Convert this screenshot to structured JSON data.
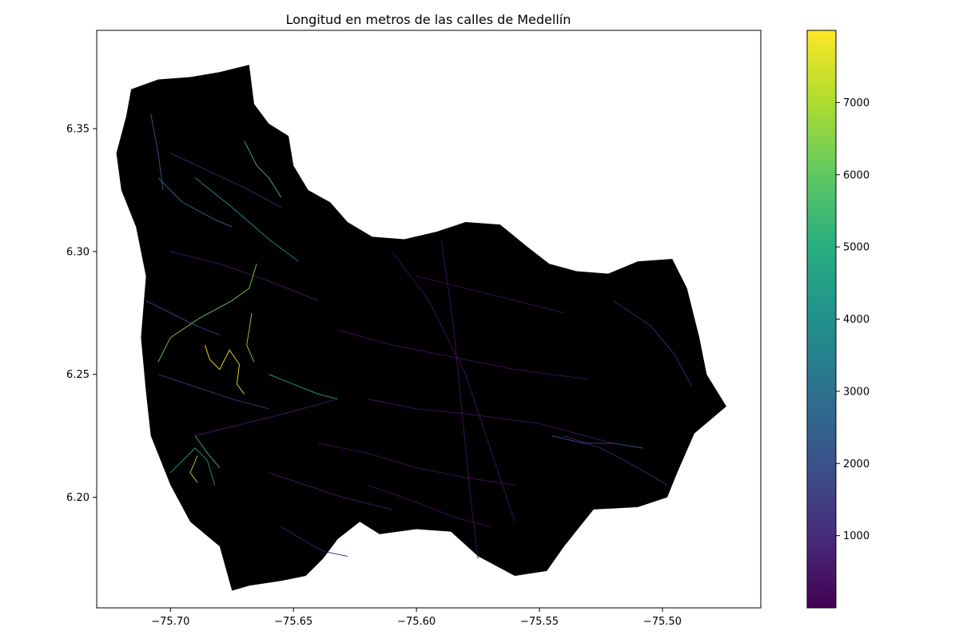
{
  "chart_data": {
    "type": "map",
    "title": "Longitud en metros de las calles de Medellín",
    "xlabel": "",
    "ylabel": "",
    "xlim": [
      -75.73,
      -75.46
    ],
    "ylim": [
      6.155,
      6.39
    ],
    "x_ticks": [
      {
        "value": -75.7,
        "label": "−75.70"
      },
      {
        "value": -75.65,
        "label": "−75.65"
      },
      {
        "value": -75.6,
        "label": "−75.60"
      },
      {
        "value": -75.55,
        "label": "−75.55"
      },
      {
        "value": -75.5,
        "label": "−75.50"
      }
    ],
    "y_ticks": [
      {
        "value": 6.2,
        "label": "6.20"
      },
      {
        "value": 6.25,
        "label": "6.25"
      },
      {
        "value": 6.3,
        "label": "6.30"
      },
      {
        "value": 6.35,
        "label": "6.35"
      }
    ],
    "grid": false,
    "background_color": "#000000",
    "colorbar": {
      "cmap": "viridis",
      "vmin": 0,
      "vmax": 8000,
      "ticks": [
        {
          "value": 1000,
          "label": "1000"
        },
        {
          "value": 2000,
          "label": "2000"
        },
        {
          "value": 3000,
          "label": "3000"
        },
        {
          "value": 4000,
          "label": "4000"
        },
        {
          "value": 5000,
          "label": "5000"
        },
        {
          "value": 6000,
          "label": "6000"
        },
        {
          "value": 7000,
          "label": "7000"
        }
      ],
      "placement": "right"
    },
    "boundary": [
      [
        -75.716,
        6.366
      ],
      [
        -75.705,
        6.37
      ],
      [
        -75.692,
        6.371
      ],
      [
        -75.68,
        6.373
      ],
      [
        -75.668,
        6.376
      ],
      [
        -75.666,
        6.36
      ],
      [
        -75.66,
        6.352
      ],
      [
        -75.652,
        6.347
      ],
      [
        -75.65,
        6.335
      ],
      [
        -75.644,
        6.325
      ],
      [
        -75.635,
        6.32
      ],
      [
        -75.628,
        6.312
      ],
      [
        -75.618,
        6.306
      ],
      [
        -75.605,
        6.305
      ],
      [
        -75.592,
        6.308
      ],
      [
        -75.58,
        6.312
      ],
      [
        -75.566,
        6.311
      ],
      [
        -75.555,
        6.302
      ],
      [
        -75.546,
        6.295
      ],
      [
        -75.535,
        6.292
      ],
      [
        -75.522,
        6.291
      ],
      [
        -75.51,
        6.296
      ],
      [
        -75.496,
        6.297
      ],
      [
        -75.49,
        6.285
      ],
      [
        -75.485,
        6.265
      ],
      [
        -75.482,
        6.25
      ],
      [
        -75.474,
        6.237
      ],
      [
        -75.487,
        6.226
      ],
      [
        -75.494,
        6.21
      ],
      [
        -75.498,
        6.2
      ],
      [
        -75.51,
        6.196
      ],
      [
        -75.528,
        6.195
      ],
      [
        -75.54,
        6.18
      ],
      [
        -75.547,
        6.17
      ],
      [
        -75.56,
        6.168
      ],
      [
        -75.575,
        6.176
      ],
      [
        -75.586,
        6.186
      ],
      [
        -75.6,
        6.187
      ],
      [
        -75.615,
        6.185
      ],
      [
        -75.623,
        6.19
      ],
      [
        -75.632,
        6.183
      ],
      [
        -75.638,
        6.175
      ],
      [
        -75.645,
        6.168
      ],
      [
        -75.655,
        6.166
      ],
      [
        -75.668,
        6.164
      ],
      [
        -75.675,
        6.162
      ],
      [
        -75.68,
        6.18
      ],
      [
        -75.692,
        6.19
      ],
      [
        -75.7,
        6.205
      ],
      [
        -75.708,
        6.225
      ],
      [
        -75.71,
        6.243
      ],
      [
        -75.712,
        6.265
      ],
      [
        -75.71,
        6.29
      ],
      [
        -75.714,
        6.31
      ],
      [
        -75.72,
        6.325
      ],
      [
        -75.722,
        6.34
      ],
      [
        -75.718,
        6.355
      ]
    ],
    "streets": [
      {
        "value": 300,
        "points": [
          [
            -75.61,
            6.3
          ],
          [
            -75.595,
            6.28
          ],
          [
            -75.58,
            6.25
          ],
          [
            -75.57,
            6.22
          ],
          [
            -75.56,
            6.19
          ]
        ]
      },
      {
        "value": 300,
        "points": [
          [
            -75.59,
            6.305
          ],
          [
            -75.585,
            6.27
          ],
          [
            -75.582,
            6.24
          ],
          [
            -75.578,
            6.2
          ],
          [
            -75.575,
            6.175
          ]
        ]
      },
      {
        "value": 300,
        "points": [
          [
            -75.632,
            6.268
          ],
          [
            -75.61,
            6.262
          ],
          [
            -75.59,
            6.258
          ],
          [
            -75.56,
            6.252
          ],
          [
            -75.53,
            6.248
          ]
        ]
      },
      {
        "value": 300,
        "points": [
          [
            -75.62,
            6.24
          ],
          [
            -75.6,
            6.236
          ],
          [
            -75.58,
            6.234
          ],
          [
            -75.55,
            6.23
          ],
          [
            -75.52,
            6.222
          ]
        ]
      },
      {
        "value": 300,
        "points": [
          [
            -75.64,
            6.222
          ],
          [
            -75.62,
            6.218
          ],
          [
            -75.6,
            6.212
          ],
          [
            -75.58,
            6.208
          ],
          [
            -75.56,
            6.205
          ]
        ]
      },
      {
        "value": 300,
        "points": [
          [
            -75.6,
            6.29
          ],
          [
            -75.58,
            6.285
          ],
          [
            -75.56,
            6.28
          ],
          [
            -75.54,
            6.275
          ]
        ]
      },
      {
        "value": 300,
        "points": [
          [
            -75.62,
            6.205
          ],
          [
            -75.6,
            6.198
          ],
          [
            -75.585,
            6.192
          ],
          [
            -75.57,
            6.188
          ]
        ]
      },
      {
        "value": 500,
        "points": [
          [
            -75.66,
            6.21
          ],
          [
            -75.645,
            6.205
          ],
          [
            -75.63,
            6.2
          ],
          [
            -75.61,
            6.195
          ]
        ]
      },
      {
        "value": 500,
        "points": [
          [
            -75.655,
            6.188
          ],
          [
            -75.645,
            6.182
          ],
          [
            -75.638,
            6.178
          ],
          [
            -75.628,
            6.176
          ]
        ]
      },
      {
        "value": 500,
        "points": [
          [
            -75.7,
            6.3
          ],
          [
            -75.68,
            6.295
          ],
          [
            -75.66,
            6.288
          ],
          [
            -75.64,
            6.28
          ]
        ]
      },
      {
        "value": 500,
        "points": [
          [
            -75.69,
            6.225
          ],
          [
            -75.67,
            6.23
          ],
          [
            -75.65,
            6.235
          ],
          [
            -75.632,
            6.24
          ]
        ]
      },
      {
        "value": 800,
        "points": [
          [
            -75.52,
            6.28
          ],
          [
            -75.505,
            6.27
          ],
          [
            -75.495,
            6.258
          ],
          [
            -75.488,
            6.245
          ]
        ]
      },
      {
        "value": 800,
        "points": [
          [
            -75.54,
            6.225
          ],
          [
            -75.525,
            6.22
          ],
          [
            -75.51,
            6.212
          ],
          [
            -75.498,
            6.205
          ]
        ]
      },
      {
        "value": 800,
        "points": [
          [
            -75.7,
            6.34
          ],
          [
            -75.685,
            6.333
          ],
          [
            -75.67,
            6.326
          ],
          [
            -75.655,
            6.318
          ]
        ]
      },
      {
        "value": 1200,
        "points": [
          [
            -75.705,
            6.25
          ],
          [
            -75.69,
            6.245
          ],
          [
            -75.675,
            6.24
          ],
          [
            -75.66,
            6.236
          ]
        ]
      },
      {
        "value": 1500,
        "points": [
          [
            -75.71,
            6.28
          ],
          [
            -75.7,
            6.275
          ],
          [
            -75.69,
            6.27
          ],
          [
            -75.68,
            6.266
          ]
        ]
      },
      {
        "value": 1800,
        "points": [
          [
            -75.545,
            6.225
          ],
          [
            -75.532,
            6.222
          ],
          [
            -75.52,
            6.222
          ],
          [
            -75.508,
            6.22
          ]
        ]
      },
      {
        "value": 2200,
        "points": [
          [
            -75.708,
            6.356
          ],
          [
            -75.705,
            6.34
          ],
          [
            -75.703,
            6.325
          ]
        ]
      },
      {
        "value": 3000,
        "points": [
          [
            -75.705,
            6.33
          ],
          [
            -75.695,
            6.32
          ],
          [
            -75.682,
            6.313
          ],
          [
            -75.675,
            6.31
          ]
        ]
      },
      {
        "value": 3800,
        "points": [
          [
            -75.69,
            6.33
          ],
          [
            -75.675,
            6.318
          ],
          [
            -75.66,
            6.305
          ],
          [
            -75.648,
            6.296
          ]
        ]
      },
      {
        "value": 4200,
        "points": [
          [
            -75.7,
            6.21
          ],
          [
            -75.69,
            6.22
          ],
          [
            -75.685,
            6.215
          ],
          [
            -75.682,
            6.205
          ]
        ]
      },
      {
        "value": 4800,
        "points": [
          [
            -75.66,
            6.25
          ],
          [
            -75.65,
            6.246
          ],
          [
            -75.64,
            6.242
          ],
          [
            -75.632,
            6.24
          ]
        ]
      },
      {
        "value": 5200,
        "points": [
          [
            -75.69,
            6.225
          ],
          [
            -75.685,
            6.218
          ],
          [
            -75.68,
            6.212
          ]
        ]
      },
      {
        "value": 5500,
        "points": [
          [
            -75.67,
            6.345
          ],
          [
            -75.665,
            6.335
          ],
          [
            -75.66,
            6.33
          ],
          [
            -75.655,
            6.322
          ]
        ]
      },
      {
        "value": 6300,
        "points": [
          [
            -75.665,
            6.295
          ],
          [
            -75.668,
            6.285
          ],
          [
            -75.675,
            6.28
          ],
          [
            -75.688,
            6.273
          ],
          [
            -75.7,
            6.265
          ],
          [
            -75.705,
            6.255
          ]
        ]
      },
      {
        "value": 6600,
        "points": [
          [
            -75.667,
            6.275
          ],
          [
            -75.668,
            6.268
          ],
          [
            -75.669,
            6.262
          ],
          [
            -75.666,
            6.255
          ]
        ]
      },
      {
        "value": 7000,
        "points": [
          [
            -75.689,
            6.217
          ],
          [
            -75.692,
            6.21
          ],
          [
            -75.689,
            6.206
          ]
        ]
      },
      {
        "value": 7900,
        "points": [
          [
            -75.686,
            6.262
          ],
          [
            -75.684,
            6.256
          ],
          [
            -75.68,
            6.252
          ],
          [
            -75.676,
            6.26
          ],
          [
            -75.672,
            6.254
          ],
          [
            -75.673,
            6.246
          ],
          [
            -75.67,
            6.242
          ]
        ]
      }
    ]
  }
}
